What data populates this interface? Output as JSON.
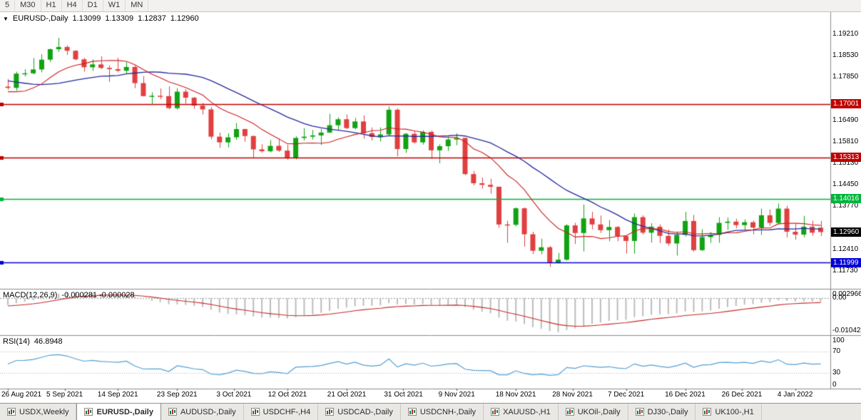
{
  "toolbar": {
    "timeframes": [
      "5",
      "M30",
      "H1",
      "H4",
      "D1",
      "W1",
      "MN"
    ]
  },
  "chart": {
    "title": "EURUSD-,Daily",
    "ohlc": {
      "open": "1.13099",
      "high": "1.13309",
      "low": "1.12837",
      "close": "1.12960"
    },
    "price_ticks": [
      "1.19210",
      "1.18530",
      "1.17850",
      "1.17170",
      "1.16490",
      "1.15810",
      "1.15130",
      "1.14450",
      "1.13770",
      "1.13090",
      "1.12410",
      "1.11730"
    ],
    "current_price": {
      "value": 1.1296,
      "label": "1.12960",
      "color": "#000000"
    },
    "x_labels": [
      {
        "text": "26 Aug 2021",
        "i": 0
      },
      {
        "text": "5 Sep 2021",
        "i": 6.7
      },
      {
        "text": "14 Sep 2021",
        "i": 13
      },
      {
        "text": "23 Sep 2021",
        "i": 20
      },
      {
        "text": "3 Oct 2021",
        "i": 26.7
      },
      {
        "text": "12 Oct 2021",
        "i": 33
      },
      {
        "text": "21 Oct 2021",
        "i": 40
      },
      {
        "text": "31 Oct 2021",
        "i": 46.7
      },
      {
        "text": "9 Nov 2021",
        "i": 53
      },
      {
        "text": "18 Nov 2021",
        "i": 60
      },
      {
        "text": "28 Nov 2021",
        "i": 66.7
      },
      {
        "text": "7 Dec 2021",
        "i": 73
      },
      {
        "text": "16 Dec 2021",
        "i": 80
      },
      {
        "text": "26 Dec 2021",
        "i": 86.7
      },
      {
        "text": "4 Jan 2022",
        "i": 93
      }
    ]
  },
  "chart_data": {
    "type": "candlestick",
    "symbol": "EURUSD-",
    "timeframe": "Daily",
    "candles": [
      [
        1.1755,
        1.1779,
        1.1745,
        1.1751
      ],
      [
        1.1751,
        1.1802,
        1.1742,
        1.1796
      ],
      [
        1.1796,
        1.181,
        1.1787,
        1.1797
      ],
      [
        1.1797,
        1.1845,
        1.1793,
        1.1809
      ],
      [
        1.1809,
        1.1857,
        1.18,
        1.184
      ],
      [
        1.184,
        1.1875,
        1.1833,
        1.1873
      ],
      [
        1.1873,
        1.1909,
        1.1865,
        1.188
      ],
      [
        1.188,
        1.1885,
        1.1855,
        1.1868
      ],
      [
        1.1868,
        1.187,
        1.1838,
        1.1841
      ],
      [
        1.1841,
        1.1846,
        1.1802,
        1.1816
      ],
      [
        1.1816,
        1.1841,
        1.1805,
        1.1825
      ],
      [
        1.1825,
        1.1851,
        1.181,
        1.1814
      ],
      [
        1.1814,
        1.1822,
        1.177,
        1.181
      ],
      [
        1.181,
        1.1846,
        1.18,
        1.1805
      ],
      [
        1.1805,
        1.1832,
        1.1795,
        1.1817
      ],
      [
        1.1817,
        1.1821,
        1.175,
        1.1766
      ],
      [
        1.1766,
        1.1788,
        1.1724,
        1.1725
      ],
      [
        1.1725,
        1.1737,
        1.17,
        1.1726
      ],
      [
        1.1726,
        1.1749,
        1.1715,
        1.1725
      ],
      [
        1.1725,
        1.1756,
        1.1684,
        1.1687
      ],
      [
        1.1687,
        1.175,
        1.1683,
        1.1739
      ],
      [
        1.1739,
        1.1747,
        1.1701,
        1.172
      ],
      [
        1.172,
        1.1722,
        1.1685,
        1.1695
      ],
      [
        1.1695,
        1.1704,
        1.1667,
        1.1683
      ],
      [
        1.1683,
        1.169,
        1.1589,
        1.1597
      ],
      [
        1.1597,
        1.161,
        1.1562,
        1.1579
      ],
      [
        1.1579,
        1.1608,
        1.1563,
        1.1595
      ],
      [
        1.1595,
        1.164,
        1.1587,
        1.1621
      ],
      [
        1.1621,
        1.1622,
        1.1581,
        1.1599
      ],
      [
        1.1599,
        1.1601,
        1.1529,
        1.1557
      ],
      [
        1.1557,
        1.1573,
        1.1546,
        1.1551
      ],
      [
        1.1551,
        1.1586,
        1.1547,
        1.1568
      ],
      [
        1.1568,
        1.1591,
        1.1549,
        1.1553
      ],
      [
        1.1553,
        1.1572,
        1.1524,
        1.153
      ],
      [
        1.153,
        1.1598,
        1.1525,
        1.1593
      ],
      [
        1.1593,
        1.1624,
        1.1585,
        1.1597
      ],
      [
        1.1597,
        1.1618,
        1.1588,
        1.1601
      ],
      [
        1.1601,
        1.1622,
        1.1571,
        1.161
      ],
      [
        1.161,
        1.1669,
        1.1609,
        1.1633
      ],
      [
        1.1633,
        1.1658,
        1.1617,
        1.1652
      ],
      [
        1.1652,
        1.1667,
        1.1621,
        1.1624
      ],
      [
        1.1624,
        1.1656,
        1.162,
        1.1645
      ],
      [
        1.1645,
        1.1664,
        1.1591,
        1.1608
      ],
      [
        1.1608,
        1.1626,
        1.1585,
        1.1596
      ],
      [
        1.1596,
        1.1626,
        1.1582,
        1.1604
      ],
      [
        1.1604,
        1.1692,
        1.1601,
        1.1682
      ],
      [
        1.1682,
        1.1686,
        1.1535,
        1.1558
      ],
      [
        1.1558,
        1.1609,
        1.1546,
        1.1606
      ],
      [
        1.1606,
        1.1614,
        1.1575,
        1.1579
      ],
      [
        1.1579,
        1.1617,
        1.1572,
        1.1612
      ],
      [
        1.1612,
        1.1617,
        1.1527,
        1.1554
      ],
      [
        1.1554,
        1.1573,
        1.1513,
        1.1567
      ],
      [
        1.1567,
        1.1597,
        1.1552,
        1.1588
      ],
      [
        1.1588,
        1.1608,
        1.157,
        1.1593
      ],
      [
        1.1593,
        1.1594,
        1.1475,
        1.1479
      ],
      [
        1.1479,
        1.1489,
        1.1443,
        1.145
      ],
      [
        1.145,
        1.1468,
        1.1433,
        1.1445
      ],
      [
        1.1445,
        1.1464,
        1.1417,
        1.1439
      ],
      [
        1.1439,
        1.1439,
        1.131,
        1.132
      ],
      [
        1.132,
        1.1332,
        1.1262,
        1.1319
      ],
      [
        1.1319,
        1.1374,
        1.1314,
        1.1371
      ],
      [
        1.1371,
        1.1374,
        1.125,
        1.1289
      ],
      [
        1.1289,
        1.1297,
        1.1226,
        1.1237
      ],
      [
        1.1237,
        1.1275,
        1.1226,
        1.1248
      ],
      [
        1.1248,
        1.1252,
        1.1186,
        1.12
      ],
      [
        1.12,
        1.123,
        1.1197,
        1.1209
      ],
      [
        1.1209,
        1.1321,
        1.1206,
        1.1317
      ],
      [
        1.1317,
        1.1325,
        1.1258,
        1.1293
      ],
      [
        1.1293,
        1.1383,
        1.1235,
        1.1339
      ],
      [
        1.1339,
        1.136,
        1.1305,
        1.132
      ],
      [
        1.132,
        1.1348,
        1.1293,
        1.1302
      ],
      [
        1.1302,
        1.1334,
        1.1267,
        1.1312
      ],
      [
        1.1312,
        1.1315,
        1.1267,
        1.1283
      ],
      [
        1.1283,
        1.1285,
        1.1228,
        1.1268
      ],
      [
        1.1268,
        1.1355,
        1.1228,
        1.1343
      ],
      [
        1.1343,
        1.1349,
        1.1288,
        1.1294
      ],
      [
        1.1294,
        1.1324,
        1.1263,
        1.1313
      ],
      [
        1.1313,
        1.132,
        1.1261,
        1.1284
      ],
      [
        1.1284,
        1.1304,
        1.1253,
        1.126
      ],
      [
        1.126,
        1.1298,
        1.1222,
        1.1287
      ],
      [
        1.1287,
        1.136,
        1.1282,
        1.1331
      ],
      [
        1.1331,
        1.135,
        1.1234,
        1.1239
      ],
      [
        1.1239,
        1.1305,
        1.1236,
        1.128
      ],
      [
        1.128,
        1.1296,
        1.1262,
        1.1287
      ],
      [
        1.1287,
        1.1343,
        1.1262,
        1.1325
      ],
      [
        1.1325,
        1.1342,
        1.1303,
        1.1329
      ],
      [
        1.1329,
        1.1338,
        1.1308,
        1.1318
      ],
      [
        1.1318,
        1.1336,
        1.1302,
        1.1327
      ],
      [
        1.1327,
        1.1332,
        1.1289,
        1.131
      ],
      [
        1.131,
        1.137,
        1.1287,
        1.1349
      ],
      [
        1.1349,
        1.1367,
        1.1316,
        1.1325
      ],
      [
        1.1325,
        1.1386,
        1.132,
        1.137
      ],
      [
        1.137,
        1.1379,
        1.1279,
        1.1297
      ],
      [
        1.1297,
        1.1323,
        1.1272,
        1.1288
      ],
      [
        1.1288,
        1.1347,
        1.128,
        1.1313
      ],
      [
        1.1313,
        1.1332,
        1.1285,
        1.1294
      ],
      [
        1.13099,
        1.13309,
        1.12837,
        1.1296
      ]
    ],
    "warmup_closes": [
      1.1838,
      1.1812,
      1.1806,
      1.1799,
      1.1782,
      1.1793,
      1.1771,
      1.177,
      1.1802,
      1.1816,
      1.1844,
      1.1886,
      1.187,
      1.1872,
      1.1864,
      1.1837,
      1.1833,
      1.1762,
      1.1738,
      1.1721,
      1.1739,
      1.173,
      1.1795,
      1.1777,
      1.171,
      1.1712,
      1.1675,
      1.1697,
      1.1745,
      1.1756,
      1.177
    ],
    "overlays": [
      {
        "type": "sma",
        "period": 10,
        "color": "#cc2020",
        "name": "ma-fast"
      },
      {
        "type": "sma",
        "period": 21,
        "color": "#262a9e",
        "name": "ma-slow"
      }
    ],
    "hlines": [
      {
        "price": 1.17001,
        "label": "1.17001",
        "color": "#c00000"
      },
      {
        "price": 1.15313,
        "label": "1.15313",
        "color": "#c00000"
      },
      {
        "price": 1.14016,
        "label": "1.14016",
        "color": "#00b43c"
      },
      {
        "price": 1.11999,
        "label": "1.11999",
        "color": "#0000d6"
      }
    ]
  },
  "macd": {
    "title": "MACD(12,26,9)",
    "values": "-0.000281 -0.000028",
    "axis_top": "0.002966",
    "axis_zero": "0.00",
    "axis_bottom": "-0.010424",
    "fast": 12,
    "slow": 26,
    "signal": 9
  },
  "rsi": {
    "title": "RSI(14)",
    "value": "46.8948",
    "axis": [
      "100",
      "70",
      "30",
      "0"
    ],
    "levels": [
      70,
      30
    ],
    "period": 14
  },
  "tabs": [
    {
      "label": "USDX,Weekly",
      "active": false
    },
    {
      "label": "EURUSD-,Daily",
      "active": true
    },
    {
      "label": "AUDUSD-,Daily",
      "active": false
    },
    {
      "label": "USDCHF-,H4",
      "active": false
    },
    {
      "label": "USDCAD-,Daily",
      "active": false
    },
    {
      "label": "USDCNH-,Daily",
      "active": false
    },
    {
      "label": "XAUUSD-,H1",
      "active": false
    },
    {
      "label": "UKOil-,Daily",
      "active": false
    },
    {
      "label": "DJ30-,Daily",
      "active": false
    },
    {
      "label": "UK100-,H1",
      "active": false
    }
  ],
  "colors": {
    "bull": "#12a212",
    "bear": "#e04040",
    "ma_fast": "#cc2020",
    "ma_slow": "#262a9e",
    "macd_hist": "#bdbdbd",
    "macd_signal": "#c62828",
    "rsi": "#539fd4",
    "axis_text": "#000000"
  }
}
